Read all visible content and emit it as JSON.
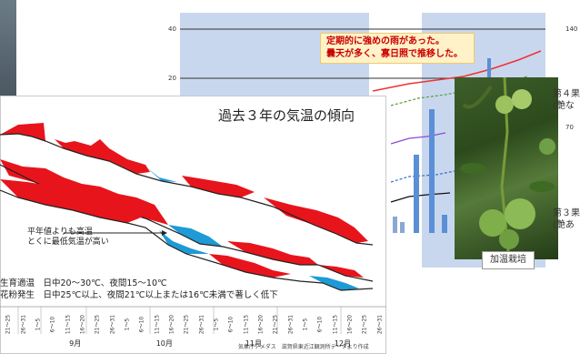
{
  "right_chart": {
    "callout": {
      "line1": "定期的に強めの雨があった。",
      "line2": "曇天が多く、寡日照で推移した。"
    },
    "y_left_top": "40",
    "y_left_mid": "20",
    "y_right_top": "140",
    "y_right_mid": "70"
  },
  "photo": {
    "label": "加温栽培"
  },
  "right_texts": {
    "t1_line1": "第４果",
    "t1_line2": "(艶な",
    "t2_line1": "第３果",
    "t2_line2": "(艶あ"
  },
  "panel": {
    "title": "過去３年の気温の傾向",
    "note_line1": "平年値よりも高温",
    "note_line2": "とくに最低気温が高い",
    "legend_line1": "生育適温　日中20～30℃、夜間15～10℃",
    "legend_line2": "花粉発生　日中25℃以上、夜間21℃以上または16℃未満で著しく低下",
    "x_months": [
      "9月",
      "10月",
      "11月",
      "12月"
    ],
    "x_ticks": [
      "1～5",
      "6～10",
      "11～15",
      "16～20",
      "21～25",
      "26～31"
    ],
    "source": "気象庁アメダス　滋賀県東近江観測所データより作成"
  },
  "colors": {
    "above_normal": "#e8141c",
    "below_normal": "#1e9ad6",
    "line": "#222222",
    "shade": "#c9d7ee"
  }
}
